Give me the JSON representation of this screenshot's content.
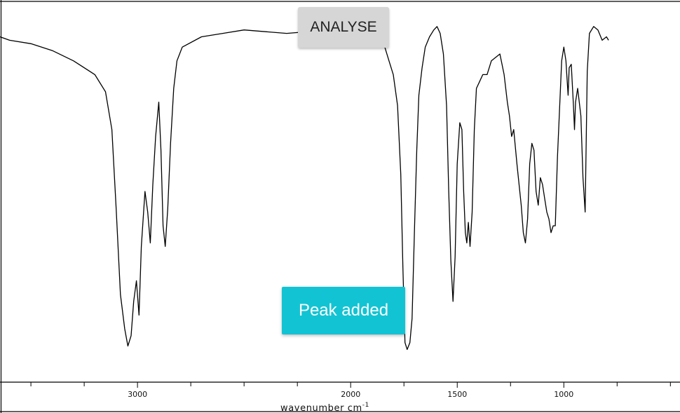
{
  "analyse_button": {
    "label": "ANALYSE"
  },
  "toast": {
    "text": "Peak added",
    "color": "#12c4d3"
  },
  "chart_data": {
    "type": "line",
    "title": "",
    "xlabel": "wavenumber cm",
    "xlabel_superscript": "-1",
    "ylabel": "",
    "x_reversed": true,
    "xlim": [
      3645,
      455
    ],
    "x_ticks": [
      3000,
      2000,
      1500,
      1000
    ],
    "x_tick_labels": [
      "3000",
      "2000",
      "1500",
      "1000"
    ],
    "x_minor_step": 250,
    "grid": false,
    "series": [
      {
        "line_color": "#000000",
        "points": [
          [
            3645,
            0.95
          ],
          [
            3600,
            0.94
          ],
          [
            3500,
            0.93
          ],
          [
            3400,
            0.91
          ],
          [
            3300,
            0.88
          ],
          [
            3200,
            0.84
          ],
          [
            3150,
            0.79
          ],
          [
            3120,
            0.68
          ],
          [
            3100,
            0.45
          ],
          [
            3080,
            0.2
          ],
          [
            3060,
            0.1
          ],
          [
            3045,
            0.05
          ],
          [
            3030,
            0.08
          ],
          [
            3018,
            0.18
          ],
          [
            3005,
            0.24
          ],
          [
            2993,
            0.14
          ],
          [
            2982,
            0.34
          ],
          [
            2965,
            0.5
          ],
          [
            2952,
            0.44
          ],
          [
            2940,
            0.35
          ],
          [
            2928,
            0.52
          ],
          [
            2915,
            0.66
          ],
          [
            2900,
            0.76
          ],
          [
            2890,
            0.62
          ],
          [
            2880,
            0.4
          ],
          [
            2870,
            0.34
          ],
          [
            2858,
            0.45
          ],
          [
            2845,
            0.64
          ],
          [
            2830,
            0.8
          ],
          [
            2815,
            0.88
          ],
          [
            2790,
            0.92
          ],
          [
            2700,
            0.95
          ],
          [
            2600,
            0.96
          ],
          [
            2500,
            0.97
          ],
          [
            2300,
            0.96
          ],
          [
            2100,
            0.97
          ],
          [
            2000,
            0.95
          ],
          [
            1950,
            0.97
          ],
          [
            1860,
            0.97
          ],
          [
            1840,
            0.92
          ],
          [
            1820,
            0.88
          ],
          [
            1800,
            0.84
          ],
          [
            1780,
            0.75
          ],
          [
            1765,
            0.55
          ],
          [
            1755,
            0.28
          ],
          [
            1745,
            0.06
          ],
          [
            1735,
            0.04
          ],
          [
            1722,
            0.06
          ],
          [
            1712,
            0.13
          ],
          [
            1700,
            0.4
          ],
          [
            1690,
            0.62
          ],
          [
            1680,
            0.78
          ],
          [
            1665,
            0.86
          ],
          [
            1650,
            0.92
          ],
          [
            1630,
            0.95
          ],
          [
            1610,
            0.97
          ],
          [
            1595,
            0.98
          ],
          [
            1580,
            0.96
          ],
          [
            1565,
            0.9
          ],
          [
            1550,
            0.75
          ],
          [
            1540,
            0.5
          ],
          [
            1530,
            0.3
          ],
          [
            1520,
            0.18
          ],
          [
            1510,
            0.31
          ],
          [
            1500,
            0.58
          ],
          [
            1488,
            0.7
          ],
          [
            1478,
            0.68
          ],
          [
            1470,
            0.5
          ],
          [
            1462,
            0.38
          ],
          [
            1455,
            0.35
          ],
          [
            1448,
            0.41
          ],
          [
            1440,
            0.34
          ],
          [
            1430,
            0.44
          ],
          [
            1420,
            0.68
          ],
          [
            1410,
            0.8
          ],
          [
            1395,
            0.82
          ],
          [
            1380,
            0.84
          ],
          [
            1360,
            0.84
          ],
          [
            1340,
            0.88
          ],
          [
            1320,
            0.89
          ],
          [
            1300,
            0.9
          ],
          [
            1280,
            0.84
          ],
          [
            1265,
            0.76
          ],
          [
            1255,
            0.72
          ],
          [
            1245,
            0.66
          ],
          [
            1235,
            0.68
          ],
          [
            1220,
            0.58
          ],
          [
            1200,
            0.46
          ],
          [
            1190,
            0.38
          ],
          [
            1180,
            0.35
          ],
          [
            1170,
            0.42
          ],
          [
            1160,
            0.58
          ],
          [
            1150,
            0.64
          ],
          [
            1140,
            0.62
          ],
          [
            1130,
            0.5
          ],
          [
            1120,
            0.46
          ],
          [
            1110,
            0.54
          ],
          [
            1100,
            0.52
          ],
          [
            1090,
            0.48
          ],
          [
            1080,
            0.44
          ],
          [
            1070,
            0.42
          ],
          [
            1060,
            0.38
          ],
          [
            1050,
            0.4
          ],
          [
            1040,
            0.4
          ],
          [
            1030,
            0.6
          ],
          [
            1020,
            0.74
          ],
          [
            1010,
            0.88
          ],
          [
            1000,
            0.92
          ],
          [
            990,
            0.88
          ],
          [
            985,
            0.83
          ],
          [
            980,
            0.78
          ],
          [
            975,
            0.86
          ],
          [
            965,
            0.87
          ],
          [
            955,
            0.75
          ],
          [
            950,
            0.68
          ],
          [
            945,
            0.76
          ],
          [
            935,
            0.8
          ],
          [
            920,
            0.72
          ],
          [
            910,
            0.54
          ],
          [
            900,
            0.44
          ],
          [
            890,
            0.85
          ],
          [
            880,
            0.96
          ],
          [
            860,
            0.98
          ],
          [
            840,
            0.97
          ],
          [
            820,
            0.94
          ],
          [
            800,
            0.95
          ],
          [
            790,
            0.94
          ]
        ]
      }
    ]
  }
}
